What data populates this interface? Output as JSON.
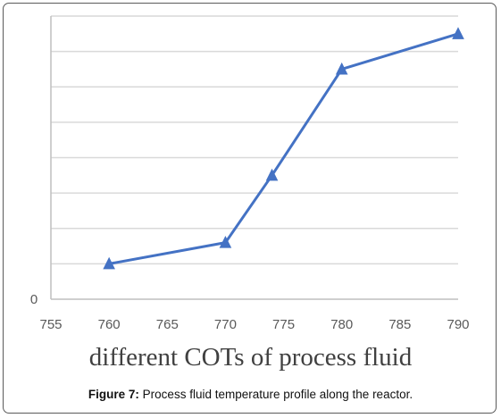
{
  "chart_data": {
    "type": "line",
    "x": [
      760,
      770,
      774,
      780,
      790
    ],
    "series": [
      {
        "values": [
          1,
          1.6,
          3.5,
          6.5,
          7.5
        ],
        "color": "#4472C4",
        "marker": "triangle"
      }
    ],
    "xlim": [
      755,
      790
    ],
    "xticks": [
      755,
      760,
      765,
      770,
      775,
      780,
      785,
      790
    ],
    "ylim": [
      0,
      8
    ],
    "yticks": [
      0,
      1,
      2,
      3,
      4,
      5,
      6,
      7,
      8
    ],
    "ytick_labels_shown": [
      "0"
    ],
    "xlabel": "different COTs of process fluid",
    "ylabel": "",
    "grid": "horizontal",
    "legend": "none"
  },
  "caption": {
    "label": "Figure 7:",
    "text": " Process fluid temperature profile along the reactor."
  }
}
